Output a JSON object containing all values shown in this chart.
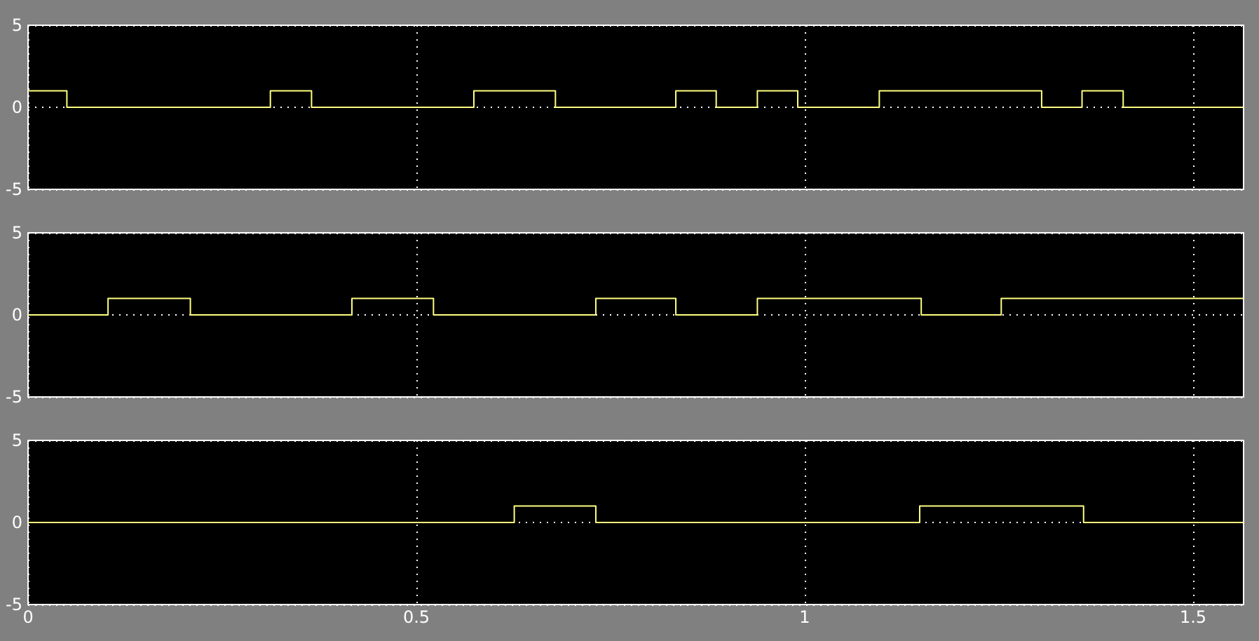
{
  "chart_data": [
    {
      "type": "step",
      "x": [
        0,
        0.05,
        0.312,
        0.365,
        0.574,
        0.679,
        0.834,
        0.886,
        0.939,
        0.991,
        1.096,
        1.305,
        1.357,
        1.41,
        1.565
      ],
      "values": [
        1,
        0,
        1,
        0,
        1,
        0,
        1,
        0,
        1,
        0,
        1,
        0,
        1,
        0,
        0
      ],
      "color": "#ffff80",
      "xlim": [
        0,
        1.565
      ],
      "xticks": [
        0,
        0.5,
        1,
        1.5
      ],
      "ylim": [
        -5,
        5
      ],
      "yticks": [
        -5,
        0,
        5
      ],
      "grid": true,
      "line_style": "solid",
      "tick_labels": "y"
    },
    {
      "type": "step",
      "x": [
        0,
        0.103,
        0.209,
        0.417,
        0.522,
        0.731,
        0.834,
        0.939,
        1.15,
        1.253,
        1.565
      ],
      "values": [
        0,
        1,
        0,
        1,
        0,
        1,
        0,
        1,
        0,
        1,
        1
      ],
      "color": "#ffff80",
      "xlim": [
        0,
        1.565
      ],
      "xticks": [
        0,
        0.5,
        1,
        1.5
      ],
      "ylim": [
        -5,
        5
      ],
      "yticks": [
        -5,
        0,
        5
      ],
      "grid": true,
      "line_style": "solid",
      "tick_labels": "y"
    },
    {
      "type": "step",
      "x": [
        0,
        0.626,
        0.731,
        1.148,
        1.359,
        1.565
      ],
      "values": [
        0,
        1,
        0,
        1,
        0,
        0
      ],
      "color": "#ffff80",
      "xlim": [
        0,
        1.565
      ],
      "xticks": [
        0,
        0.5,
        1,
        1.5
      ],
      "ylim": [
        -5,
        5
      ],
      "yticks": [
        -5,
        0,
        5
      ],
      "grid": true,
      "line_style": "solid"
    }
  ]
}
